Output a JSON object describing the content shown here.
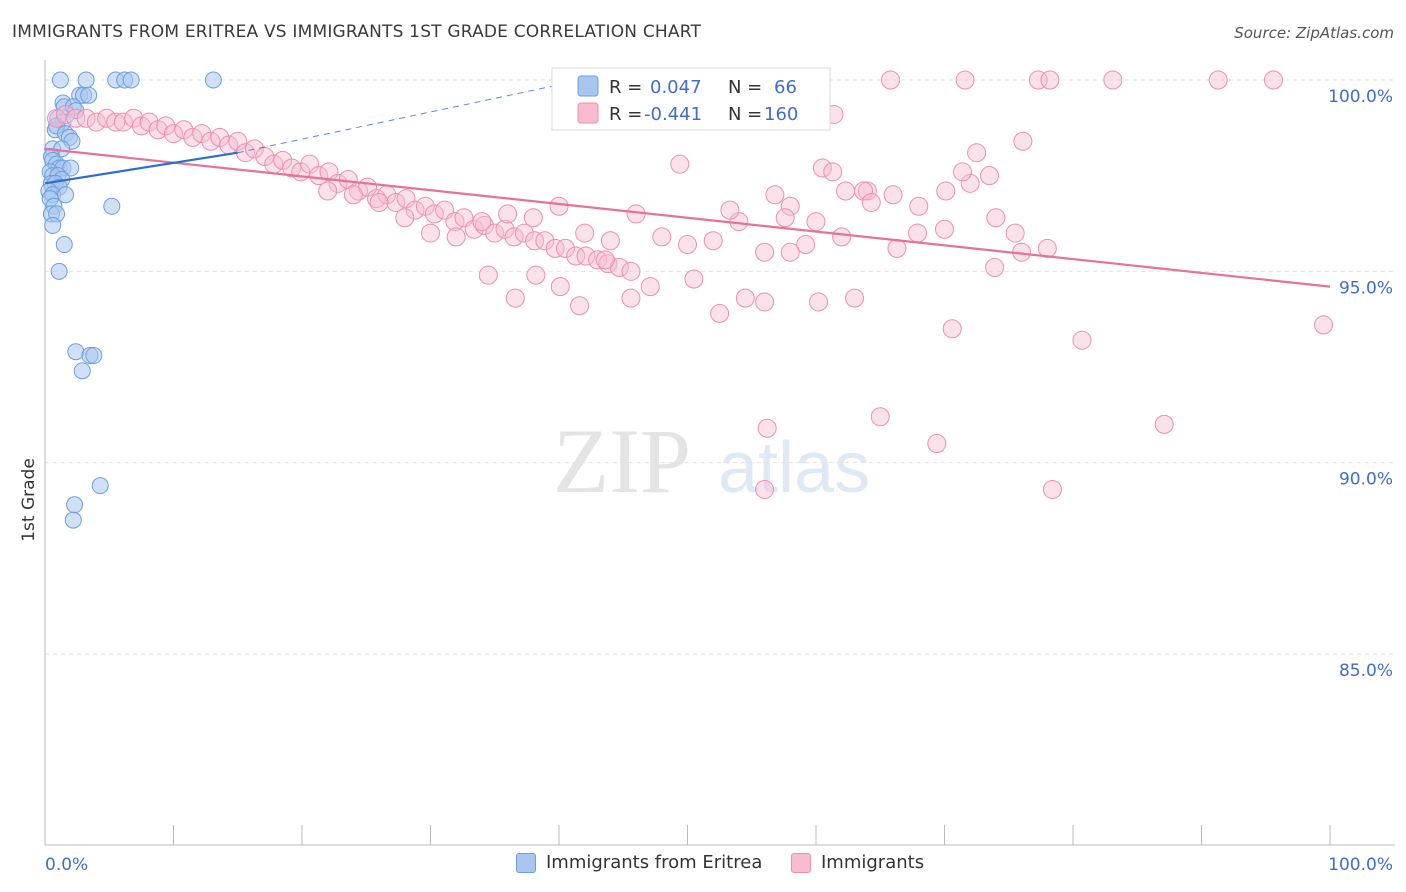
{
  "header": {
    "title": "IMMIGRANTS FROM ERITREA VS IMMIGRANTS 1ST GRADE CORRELATION CHART",
    "source": "Source: ZipAtlas.com"
  },
  "watermark": {
    "zip": "ZIP",
    "atlas": "atlas"
  },
  "legend_box": {
    "rows": [
      {
        "r_label": "R =",
        "r_value": "0.047",
        "n_label": "N =",
        "n_value": "66"
      },
      {
        "r_label": "R =",
        "r_value": "-0.441",
        "n_label": "N =",
        "n_value": "160"
      }
    ]
  },
  "bottom_legend": {
    "items": [
      "Immigrants from Eritrea",
      "Immigrants"
    ]
  },
  "colors": {
    "eritrea_fill": "#a9c6f0",
    "eritrea_stroke": "#6c9ee0",
    "eritrea_line": "#2d6fcf",
    "immigrants_fill": "#f7bcd0",
    "immigrants_stroke": "#ef8db0",
    "immigrants_line": "#e8719a",
    "tick_text": "#3d6fc6",
    "grid": "#e2e2e2"
  },
  "chart_data": {
    "type": "scatter",
    "title": "IMMIGRANTS FROM ERITREA VS IMMIGRANTS 1ST GRADE CORRELATION CHART",
    "xlabel": "",
    "ylabel": "1st Grade",
    "xlim": [
      0,
      100
    ],
    "ylim": [
      80.5,
      100.8
    ],
    "x_tick_labels": [
      "0.0%",
      "100.0%"
    ],
    "y_ticks": [
      100,
      95,
      90,
      85
    ],
    "y_tick_labels": [
      "100.0%",
      "95.0%",
      "90.0%",
      "85.0%"
    ],
    "grid": true,
    "legend_position": "top-center",
    "series": [
      {
        "name": "Immigrants from Eritrea",
        "r": 0.047,
        "n": 66,
        "trend": {
          "x": [
            0,
            15
          ],
          "y": [
            97.3,
            98.1
          ],
          "dashed_to": [
            46,
            100.3
          ]
        },
        "points": [
          [
            1.2,
            100.0
          ],
          [
            3.2,
            100.0
          ],
          [
            5.5,
            100.0
          ],
          [
            6.2,
            100.0
          ],
          [
            6.7,
            100.0
          ],
          [
            13.1,
            100.0
          ],
          [
            2.7,
            99.6
          ],
          [
            3.0,
            99.6
          ],
          [
            3.4,
            99.6
          ],
          [
            1.4,
            99.4
          ],
          [
            1.5,
            99.3
          ],
          [
            2.2,
            99.3
          ],
          [
            2.4,
            99.2
          ],
          [
            1.0,
            99.0
          ],
          [
            1.4,
            98.9
          ],
          [
            0.8,
            98.7
          ],
          [
            0.9,
            98.8
          ],
          [
            1.6,
            98.6
          ],
          [
            1.9,
            98.5
          ],
          [
            2.1,
            98.4
          ],
          [
            0.6,
            98.2
          ],
          [
            1.3,
            98.2
          ],
          [
            0.5,
            98.0
          ],
          [
            0.6,
            97.9
          ],
          [
            0.9,
            97.8
          ],
          [
            1.1,
            97.7
          ],
          [
            1.4,
            97.7
          ],
          [
            2.0,
            97.7
          ],
          [
            0.4,
            97.6
          ],
          [
            0.6,
            97.5
          ],
          [
            1.0,
            97.5
          ],
          [
            1.3,
            97.4
          ],
          [
            0.5,
            97.3
          ],
          [
            0.8,
            97.3
          ],
          [
            1.1,
            97.2
          ],
          [
            0.3,
            97.1
          ],
          [
            0.6,
            97.0
          ],
          [
            1.6,
            97.0
          ],
          [
            0.4,
            96.9
          ],
          [
            0.7,
            96.7
          ],
          [
            0.5,
            96.5
          ],
          [
            0.9,
            96.5
          ],
          [
            0.6,
            96.2
          ],
          [
            5.2,
            96.7
          ],
          [
            1.5,
            95.7
          ],
          [
            1.1,
            95.0
          ],
          [
            2.4,
            92.9
          ],
          [
            3.5,
            92.8
          ],
          [
            3.8,
            92.8
          ],
          [
            2.9,
            92.4
          ],
          [
            4.3,
            89.4
          ],
          [
            2.3,
            88.9
          ],
          [
            2.2,
            88.5
          ]
        ]
      },
      {
        "name": "Immigrants",
        "r": -0.441,
        "n": 160,
        "trend": {
          "x": [
            0,
            100
          ],
          "y": [
            98.2,
            94.6
          ]
        },
        "points": [
          [
            65.8,
            100.0
          ],
          [
            71.6,
            100.0
          ],
          [
            77.3,
            100.0
          ],
          [
            78.2,
            100.0
          ],
          [
            83.1,
            100.0
          ],
          [
            91.3,
            100.0
          ],
          [
            95.6,
            100.0
          ],
          [
            0.9,
            99.0
          ],
          [
            1.6,
            99.1
          ],
          [
            2.4,
            99.0
          ],
          [
            3.2,
            99.0
          ],
          [
            4.0,
            98.9
          ],
          [
            4.8,
            99.0
          ],
          [
            5.5,
            98.9
          ],
          [
            6.1,
            98.9
          ],
          [
            6.9,
            99.0
          ],
          [
            7.5,
            98.8
          ],
          [
            8.1,
            98.9
          ],
          [
            8.8,
            98.7
          ],
          [
            9.4,
            98.8
          ],
          [
            10.0,
            98.6
          ],
          [
            10.8,
            98.7
          ],
          [
            11.5,
            98.5
          ],
          [
            12.2,
            98.6
          ],
          [
            12.9,
            98.4
          ],
          [
            13.6,
            98.5
          ],
          [
            14.3,
            98.3
          ],
          [
            15.0,
            98.4
          ],
          [
            15.6,
            98.1
          ],
          [
            16.3,
            98.2
          ],
          [
            17.1,
            98.0
          ],
          [
            17.8,
            97.8
          ],
          [
            18.5,
            97.9
          ],
          [
            19.2,
            97.7
          ],
          [
            19.9,
            97.6
          ],
          [
            20.6,
            97.8
          ],
          [
            21.3,
            97.5
          ],
          [
            22.1,
            97.6
          ],
          [
            22.8,
            97.3
          ],
          [
            23.6,
            97.4
          ],
          [
            24.4,
            97.1
          ],
          [
            25.1,
            97.2
          ],
          [
            25.8,
            96.9
          ],
          [
            26.6,
            97.0
          ],
          [
            27.3,
            96.8
          ],
          [
            28.1,
            96.9
          ],
          [
            28.8,
            96.6
          ],
          [
            29.6,
            96.7
          ],
          [
            30.3,
            96.5
          ],
          [
            31.1,
            96.6
          ],
          [
            31.9,
            96.3
          ],
          [
            32.6,
            96.4
          ],
          [
            33.4,
            96.1
          ],
          [
            34.2,
            96.2
          ],
          [
            35.0,
            96.0
          ],
          [
            35.8,
            96.1
          ],
          [
            36.5,
            95.9
          ],
          [
            37.3,
            96.0
          ],
          [
            38.1,
            95.8
          ],
          [
            38.9,
            95.8
          ],
          [
            39.7,
            95.6
          ],
          [
            40.5,
            95.6
          ],
          [
            41.3,
            95.4
          ],
          [
            42.1,
            95.4
          ],
          [
            43.0,
            95.3
          ],
          [
            43.8,
            95.2
          ],
          [
            44.7,
            95.1
          ],
          [
            45.6,
            95.0
          ],
          [
            22.0,
            97.1
          ],
          [
            24.0,
            97.0
          ],
          [
            26.0,
            96.8
          ],
          [
            28.0,
            96.4
          ],
          [
            30.0,
            96.0
          ],
          [
            32.0,
            95.9
          ],
          [
            34.0,
            96.3
          ],
          [
            36.0,
            96.5
          ],
          [
            38.0,
            96.4
          ],
          [
            40.0,
            96.7
          ],
          [
            42.0,
            96.0
          ],
          [
            44.0,
            95.8
          ],
          [
            46.0,
            96.5
          ],
          [
            48.0,
            95.9
          ],
          [
            50.0,
            95.7
          ],
          [
            52.0,
            95.8
          ],
          [
            54.0,
            96.3
          ],
          [
            56.0,
            95.5
          ],
          [
            58.0,
            96.7
          ],
          [
            60.0,
            96.3
          ],
          [
            62.0,
            95.9
          ],
          [
            64.0,
            97.1
          ],
          [
            66.0,
            97.0
          ],
          [
            68.0,
            96.7
          ],
          [
            70.0,
            96.1
          ],
          [
            72.0,
            97.3
          ],
          [
            74.0,
            96.4
          ],
          [
            76.0,
            95.5
          ],
          [
            78.0,
            95.6
          ],
          [
            34.5,
            94.9
          ],
          [
            36.6,
            94.3
          ],
          [
            38.2,
            94.9
          ],
          [
            40.1,
            94.6
          ],
          [
            41.6,
            94.1
          ],
          [
            43.6,
            95.3
          ],
          [
            45.6,
            94.3
          ],
          [
            47.1,
            94.6
          ],
          [
            50.5,
            94.8
          ],
          [
            52.5,
            93.9
          ],
          [
            54.5,
            94.3
          ],
          [
            56.0,
            94.2
          ],
          [
            58.0,
            95.5
          ],
          [
            60.2,
            94.2
          ],
          [
            63.0,
            94.3
          ],
          [
            70.6,
            93.5
          ],
          [
            80.7,
            93.2
          ],
          [
            99.5,
            93.6
          ],
          [
            65.0,
            91.2
          ],
          [
            56.2,
            90.9
          ],
          [
            69.4,
            90.5
          ],
          [
            87.1,
            91.0
          ],
          [
            56.0,
            89.3
          ],
          [
            78.4,
            89.3
          ],
          [
            49.4,
            97.8
          ],
          [
            60.5,
            97.7
          ],
          [
            61.3,
            97.6
          ],
          [
            62.3,
            97.1
          ],
          [
            63.7,
            97.1
          ],
          [
            64.3,
            96.8
          ],
          [
            67.9,
            96.0
          ],
          [
            70.1,
            97.1
          ],
          [
            71.4,
            97.6
          ],
          [
            72.5,
            98.1
          ],
          [
            73.5,
            97.5
          ],
          [
            76.1,
            98.4
          ],
          [
            75.5,
            96.0
          ],
          [
            73.9,
            95.1
          ],
          [
            56.8,
            97.0
          ],
          [
            53.3,
            96.6
          ],
          [
            57.6,
            96.4
          ],
          [
            59.2,
            95.7
          ],
          [
            66.3,
            95.6
          ],
          [
            61.4,
            99.1
          ]
        ]
      }
    ]
  }
}
